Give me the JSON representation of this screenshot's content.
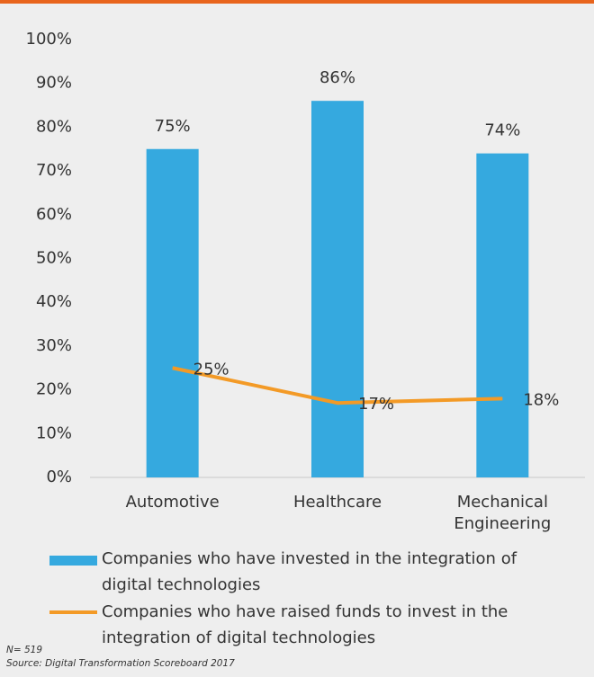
{
  "chart_data": {
    "type": "bar",
    "categories": [
      "Automotive",
      "Healthcare",
      "Mechanical Engineering"
    ],
    "series": [
      {
        "name": "Companies who have invested in the integration of digital technologies",
        "type": "bar",
        "color": "#35a9df",
        "values": [
          75,
          86,
          74
        ],
        "value_labels": [
          "75%",
          "86%",
          "74%"
        ]
      },
      {
        "name": "Companies who have raised funds to invest in the integration of digital technologies",
        "type": "line",
        "color": "#f39a26",
        "values": [
          25,
          17,
          18
        ],
        "value_labels": [
          "25%",
          "17%",
          "18%"
        ]
      }
    ],
    "ylim": [
      0,
      100
    ],
    "yticks": [
      {
        "value": 0,
        "label": "0%"
      },
      {
        "value": 10,
        "label": "10%"
      },
      {
        "value": 20,
        "label": "20%"
      },
      {
        "value": 30,
        "label": "30%"
      },
      {
        "value": 40,
        "label": "40%"
      },
      {
        "value": 50,
        "label": "50%"
      },
      {
        "value": 60,
        "label": "60%"
      },
      {
        "value": 70,
        "label": "70%"
      },
      {
        "value": 80,
        "label": "80%"
      },
      {
        "value": 90,
        "label": "90%"
      },
      {
        "value": 100,
        "label": "100%"
      }
    ],
    "legend": "bottom",
    "footnotes": [
      "N= 519",
      "Source: Digital Transformation Scoreboard 2017"
    ]
  }
}
